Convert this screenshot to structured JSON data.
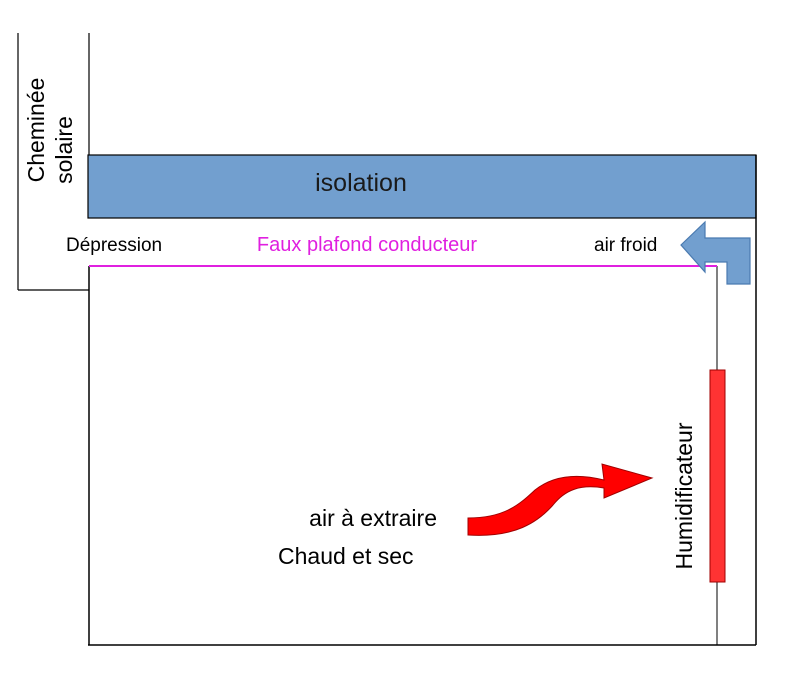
{
  "labels": {
    "chimney_line1": "Cheminée",
    "chimney_line2": "solaire",
    "insulation": "isolation",
    "depression": "Dépression",
    "false_ceiling": "Faux plafond conducteur",
    "cold_air": "air froid",
    "air_to_extract": "air à extraire",
    "hot_and_dry": "Chaud et sec",
    "humidifier": "Humidificateur"
  },
  "colors": {
    "insulation_fill": "#729fcf",
    "insulation_text": "#1a1a1a",
    "false_ceiling": "#e020e0",
    "humidifier": "#ff3333",
    "hot_air_arrow": "#ff0000",
    "cold_air_arrow": "#729fcf",
    "lines": "#000000"
  },
  "icons": {
    "cold_air_arrow": "bent-arrow-left-icon",
    "hot_air_arrow": "curved-arrow-right-icon"
  }
}
